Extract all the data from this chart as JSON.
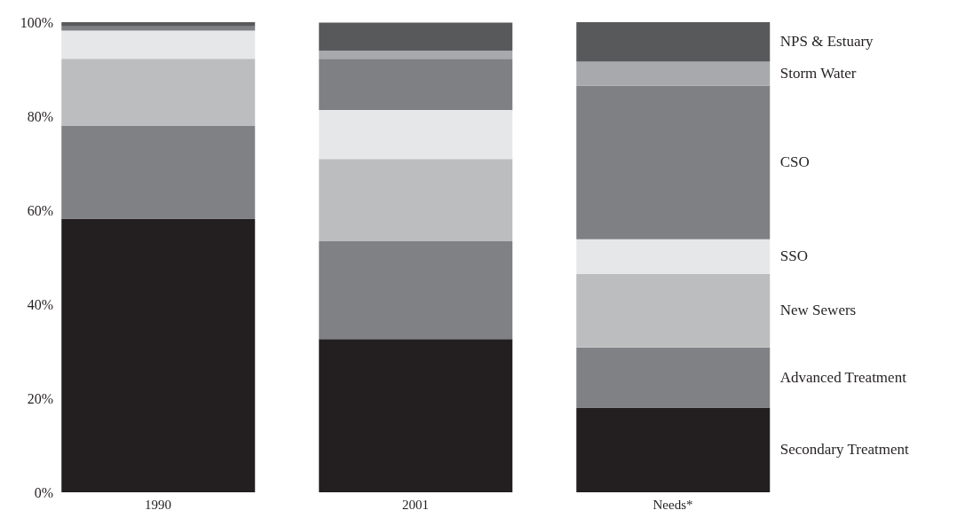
{
  "chart_data": {
    "type": "bar",
    "stacked": true,
    "categories": [
      "1990",
      "2001",
      "Needs*"
    ],
    "series": [
      {
        "name": "Secondary Treatment",
        "color": "#231f20",
        "values": [
          58.2,
          32.6,
          18.0
        ]
      },
      {
        "name": "Advanced Treatment",
        "color": "#808184",
        "values": [
          19.8,
          20.8,
          12.8
        ]
      },
      {
        "name": "New Sewers",
        "color": "#bcbdbf",
        "values": [
          14.2,
          17.5,
          15.6
        ]
      },
      {
        "name": "SSO",
        "color": "#e6e7e8",
        "values": [
          6.0,
          10.4,
          7.4
        ]
      },
      {
        "name": "CSO",
        "color": "#7f8083",
        "values": [
          0.9,
          10.9,
          32.7
        ]
      },
      {
        "name": "Storm Water",
        "color": "#a7a9ac",
        "values": [
          0,
          1.7,
          5.1
        ]
      },
      {
        "name": "NPS & Estuary",
        "color": "#58595b",
        "values": [
          0.9,
          6.0,
          8.4
        ]
      }
    ],
    "ylim": [
      0,
      100
    ],
    "yticks": [
      {
        "value": 0,
        "label": "0%"
      },
      {
        "value": 20,
        "label": "20%"
      },
      {
        "value": 40,
        "label": "40%"
      },
      {
        "value": 60,
        "label": "60%"
      },
      {
        "value": 80,
        "label": "80%"
      },
      {
        "value": 100,
        "label": "100%"
      }
    ],
    "grid": false,
    "legend": false
  }
}
